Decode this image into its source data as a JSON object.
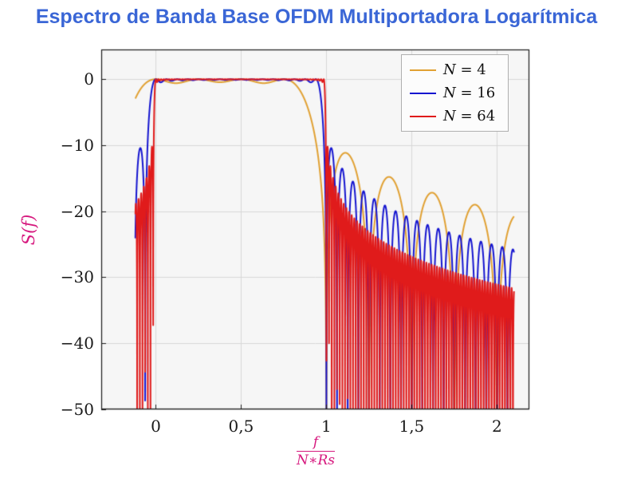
{
  "title": {
    "text": "Espectro de Banda Base OFDM Multiportadora Logarítmica",
    "color": "#3A66D6"
  },
  "chart_data": {
    "type": "line",
    "title": "Espectro de Banda Base OFDM Multiportadora Logarítmica",
    "ylabel": "S(f)",
    "xlabel": {
      "numerator": "f",
      "denominator": "N∗Rs"
    },
    "label_color": "#D6187E",
    "xlim": [
      -0.32,
      2.19
    ],
    "ylim": [
      -50,
      4.5
    ],
    "x_ticks": [
      {
        "value": 0,
        "label": "0"
      },
      {
        "value": 0.5,
        "label": "0,5"
      },
      {
        "value": 1,
        "label": "1"
      },
      {
        "value": 1.5,
        "label": "1,5"
      },
      {
        "value": 2,
        "label": "2"
      }
    ],
    "y_ticks": [
      {
        "value": 0,
        "label": "0"
      },
      {
        "value": -10,
        "label": "−10"
      },
      {
        "value": -20,
        "label": "−20"
      },
      {
        "value": -30,
        "label": "−30"
      },
      {
        "value": -40,
        "label": "−40"
      },
      {
        "value": -50,
        "label": "−50"
      }
    ],
    "grid": true,
    "legend_position": "top-right",
    "y_unit": "dB",
    "clip_db": -50,
    "domain": [
      -0.12,
      2.1
    ],
    "samples": 5500,
    "model": "OFDM baseband power spectrum: S_N(x) = sum_{k=0}^{N-1} sinc^2(N*x - k), plotted as 10*log10(S_N(x)) clipped at -50 dB, with normalized frequency x = f/(N*Rs); flat 0 dB passband over 0..1, decaying sidelobes outside",
    "series": [
      {
        "name": "N-4",
        "label": "N = 4",
        "label_var": "N",
        "label_rest": " = 4",
        "N": 4,
        "color": "#E1A133"
      },
      {
        "name": "N-16",
        "label": "N = 16",
        "label_var": "N",
        "label_rest": " = 16",
        "N": 16,
        "color": "#1515D0"
      },
      {
        "name": "N-64",
        "label": "N = 64",
        "label_var": "N",
        "label_rest": " = 64",
        "N": 64,
        "color": "#E01B1B"
      }
    ]
  },
  "style": {
    "page_bg": "#FFFFFF",
    "plot_bg": "#F6F6F6",
    "grid_color": "#D8D8D8",
    "frame_color": "#1A1A1A",
    "tick_text_color": "#1A1A1A",
    "legend_bg": "#FCFCFC",
    "legend_border": "#AFAFAF"
  }
}
